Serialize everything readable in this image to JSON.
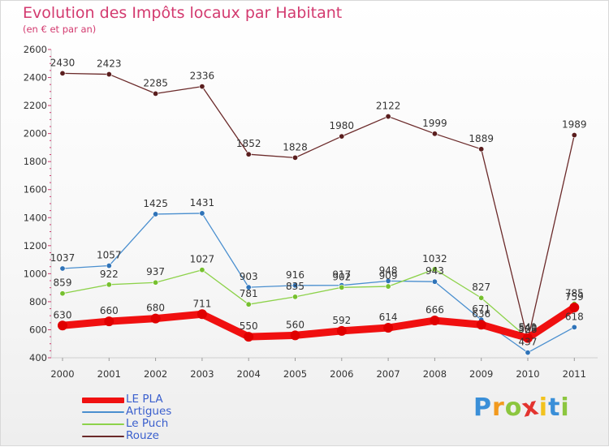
{
  "title": "Evolution des Impôts locaux par Habitant",
  "subtitle": "(en € et par an)",
  "logo": {
    "letters": [
      "P",
      "r",
      "o",
      "x",
      "i",
      "t",
      "i"
    ],
    "colors": [
      "#3a8fd8",
      "#f29a1e",
      "#8cc63f",
      "#e3342f",
      "#f2c21e",
      "#3a8fd8",
      "#8cc63f"
    ]
  },
  "chart_data": {
    "type": "line",
    "title": "Evolution des Impôts locaux par Habitant",
    "subtitle": "(en € et par an)",
    "xlabel": "",
    "ylabel": "",
    "x": [
      "2000",
      "2001",
      "2002",
      "2003",
      "2004",
      "2005",
      "2006",
      "2007",
      "2008",
      "2009",
      "2010",
      "2011"
    ],
    "ylim": [
      400,
      2600
    ],
    "yticks": [
      "400",
      "600",
      "800",
      "1000",
      "1200",
      "1400",
      "1600",
      "1800",
      "2000",
      "2200",
      "2400",
      "2600"
    ],
    "grid": false,
    "legend_position": "bottom-left",
    "series": [
      {
        "name": "Rouze",
        "color": "#6b2a2a",
        "legend_color": "#6b2a2a",
        "marker": "#5a1e1e",
        "values": [
          2430,
          2423,
          2285,
          2336,
          1852,
          1828,
          1980,
          2122,
          1999,
          1889,
          528,
          1989
        ],
        "labels": [
          "2430",
          "2423",
          "2285",
          "2336",
          "1852",
          "1828",
          "1980",
          "2122",
          "1999",
          "1889",
          "528",
          "1989"
        ]
      },
      {
        "name": "Artigues",
        "color": "#4a8fcf",
        "legend_color": "#4a8fcf",
        "marker": "#2f73b8",
        "values": [
          1037,
          1057,
          1425,
          1431,
          903,
          916,
          917,
          948,
          943,
          671,
          437,
          618
        ],
        "labels": [
          "1037",
          "1057",
          "1425",
          "1431",
          "903",
          "916",
          "917",
          "948",
          "943",
          "671",
          "437",
          "618"
        ]
      },
      {
        "name": "Le Puch",
        "color": "#8dd24a",
        "legend_color": "#8dd24a",
        "marker": "#76c02e",
        "values": [
          859,
          922,
          937,
          1027,
          781,
          835,
          902,
          909,
          1032,
          827,
          540,
          785
        ],
        "labels": [
          "859",
          "922",
          "937",
          "1027",
          "781",
          "835",
          "902",
          "909",
          "1032",
          "827",
          "540",
          "785"
        ]
      },
      {
        "name": "LE PLA",
        "color": "#f01010",
        "legend_color": "#f01010",
        "marker": "#e00000",
        "values": [
          630,
          660,
          680,
          711,
          550,
          560,
          592,
          614,
          666,
          636,
          541,
          759
        ],
        "labels": [
          "630",
          "660",
          "680",
          "711",
          "550",
          "560",
          "592",
          "614",
          "666",
          "636",
          "541",
          "759"
        ]
      }
    ],
    "legend": [
      {
        "name": "LE PLA",
        "color": "#f01010",
        "text_color": "#3a5fcd"
      },
      {
        "name": "Artigues",
        "color": "#4a8fcf",
        "text_color": "#3a5fcd"
      },
      {
        "name": "Le Puch",
        "color": "#8dd24a",
        "text_color": "#3a5fcd"
      },
      {
        "name": "Rouze",
        "color": "#6b2a2a",
        "text_color": "#3a5fcd"
      }
    ]
  }
}
